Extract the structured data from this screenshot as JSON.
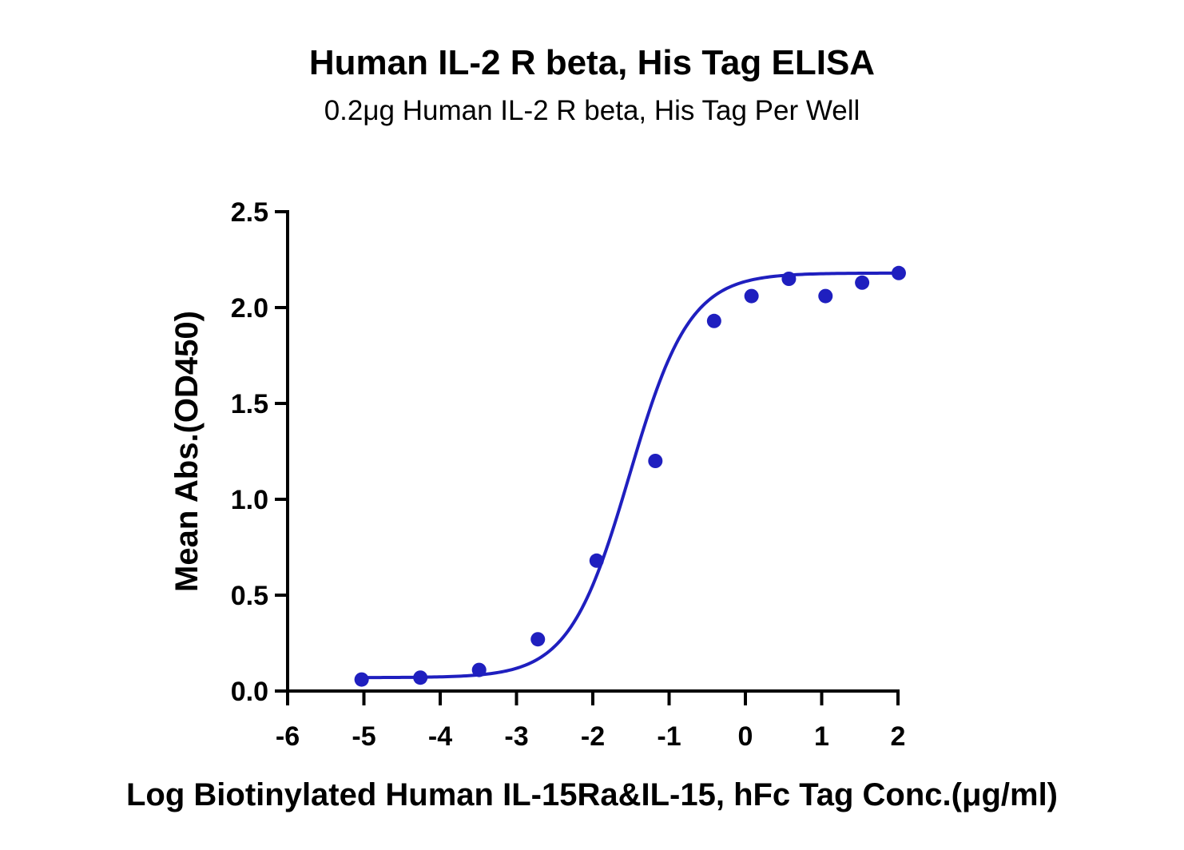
{
  "chart_data": {
    "type": "scatter",
    "title": "Human IL-2 R beta, His Tag ELISA",
    "subtitle": "0.2μg Human IL-2 R beta, His Tag Per Well",
    "xlabel": "Log Biotinylated Human IL-15Ra&IL-15, hFc Tag Conc.(μg/ml)",
    "ylabel": "Mean Abs.(OD450)",
    "xlim": [
      -6,
      2
    ],
    "ylim": [
      0,
      2.5
    ],
    "xticks": [
      -6,
      -5,
      -4,
      -3,
      -2,
      -1,
      0,
      1,
      2
    ],
    "xtick_labels": [
      "-6",
      "-5",
      "-4",
      "-3",
      "-2",
      "-1",
      "0",
      "1",
      "2"
    ],
    "yticks": [
      0,
      0.5,
      1.0,
      1.5,
      2.0,
      2.5
    ],
    "ytick_labels": [
      "0.0",
      "0.5",
      "1.0",
      "1.5",
      "2.0",
      "2.5"
    ],
    "grid": false,
    "legend": "none",
    "color": "#1f1fbf",
    "series": [
      {
        "x": [
          -5.03,
          -4.26,
          -3.49,
          -2.72,
          -1.95,
          -1.18,
          -0.41,
          0.08,
          0.57,
          1.05,
          1.53,
          2.01
        ],
        "y": [
          0.06,
          0.07,
          0.11,
          0.27,
          0.68,
          1.2,
          1.93,
          2.06,
          2.15,
          2.06,
          2.13,
          2.18
        ]
      }
    ],
    "fit_curve": {
      "model": "4PL",
      "bottom": 0.07,
      "top": 2.18,
      "log_ec50": -1.52,
      "hill_slope": 1.1,
      "x_range": [
        -5.03,
        2.01
      ]
    }
  }
}
